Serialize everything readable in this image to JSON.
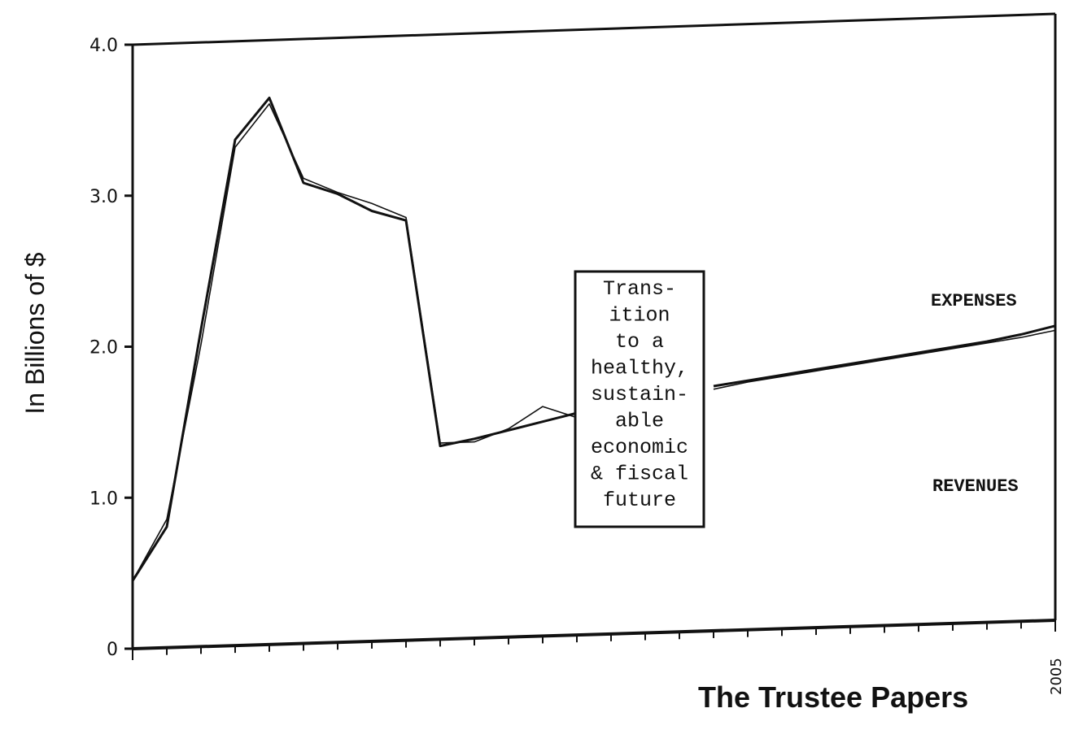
{
  "chart_data": {
    "type": "line",
    "ylabel": "In Billions of $",
    "xlabel": "",
    "ylim": [
      0,
      4.0
    ],
    "y_ticks": [
      "0",
      "1.0",
      "2.0",
      "3.0",
      "4.0"
    ],
    "x_tick_labels": {
      "last": "2005"
    },
    "series": [
      {
        "name": "EXPENSES",
        "x": [
          0,
          1,
          2,
          3,
          4,
          5,
          6,
          7,
          8,
          9,
          10,
          11,
          12,
          13,
          14,
          15,
          16,
          17,
          18,
          19,
          20,
          21,
          22,
          23,
          24,
          25,
          26,
          27
        ],
        "values": [
          0.45,
          0.8,
          2.1,
          3.35,
          3.62,
          3.05,
          2.97,
          2.85,
          2.78,
          1.28,
          1.32,
          1.37,
          1.42,
          1.47,
          null,
          null,
          null,
          1.62,
          1.65,
          1.68,
          1.71,
          1.74,
          1.77,
          1.8,
          1.83,
          1.86,
          1.9,
          1.95
        ]
      },
      {
        "name": "REVENUES",
        "x": [
          0,
          1,
          2,
          3,
          4,
          5,
          6,
          7,
          8,
          9,
          10,
          11,
          12,
          13,
          14,
          15,
          16,
          17,
          18,
          19,
          20,
          21,
          22,
          23,
          24,
          25,
          26,
          27
        ],
        "values": [
          0.45,
          0.85,
          2.0,
          3.3,
          3.58,
          3.08,
          2.98,
          2.9,
          2.8,
          1.3,
          1.3,
          1.38,
          1.52,
          1.44,
          null,
          null,
          null,
          1.6,
          1.64,
          1.67,
          1.7,
          1.73,
          1.76,
          1.79,
          1.82,
          1.85,
          1.88,
          1.92
        ]
      }
    ],
    "annotations": [
      {
        "lines": [
          "Trans-",
          "ition",
          "to a",
          "healthy,",
          "sustain-",
          "able",
          "economic",
          "& fiscal",
          "future"
        ]
      }
    ],
    "grid": false,
    "legend": "series labels at right"
  },
  "footer": "The Trustee Papers"
}
